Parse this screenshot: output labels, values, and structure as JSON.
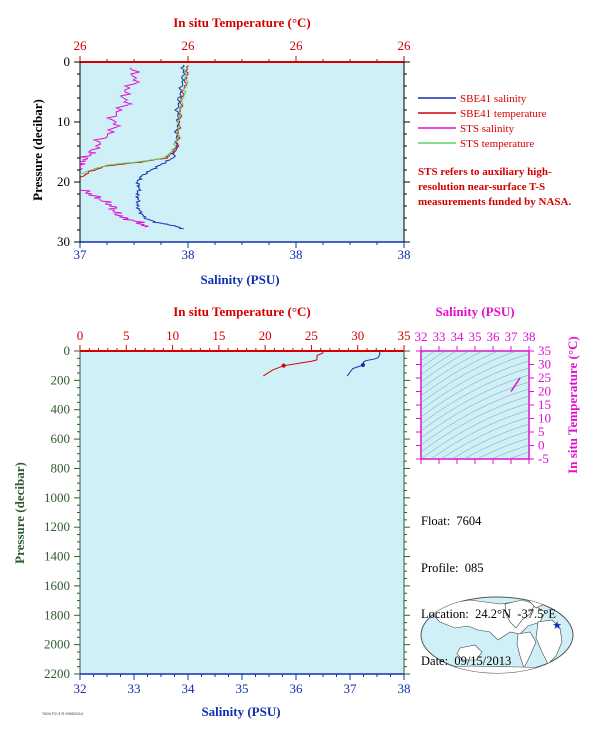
{
  "chart_data": [
    {
      "type": "line",
      "top_xlabel": "In situ Temperature (°C)",
      "top_ticks": [
        "26",
        "26",
        "26",
        "26"
      ],
      "bottom_xlabel": "Salinity (PSU)",
      "bottom_ticks": [
        "37",
        "38",
        "38",
        "38"
      ],
      "ylabel": "Pressure (decibar)",
      "ylim": [
        30,
        0
      ],
      "y_ticks": [
        "0",
        "10",
        "20",
        "30"
      ],
      "series": [
        {
          "name": "SBE41 salinity",
          "color": "#1030b0",
          "points": [
            [
              37.95,
              0.5
            ],
            [
              37.96,
              2
            ],
            [
              37.94,
              4
            ],
            [
              37.92,
              6
            ],
            [
              37.9,
              8
            ],
            [
              37.91,
              10
            ],
            [
              37.89,
              12
            ],
            [
              37.9,
              14
            ],
            [
              37.86,
              16
            ],
            [
              37.76,
              17
            ],
            [
              37.66,
              18
            ],
            [
              37.57,
              19
            ],
            [
              37.53,
              20
            ],
            [
              37.55,
              21
            ],
            [
              37.53,
              22
            ],
            [
              37.54,
              23
            ],
            [
              37.53,
              24
            ],
            [
              37.56,
              25
            ],
            [
              37.6,
              26
            ],
            [
              37.7,
              26.7
            ],
            [
              37.85,
              27.2
            ],
            [
              37.96,
              27.8
            ]
          ]
        },
        {
          "name": "SBE41 temperature",
          "color": "#d40000",
          "points": [
            [
              37.99,
              0.6
            ],
            [
              37.99,
              2
            ],
            [
              37.97,
              4
            ],
            [
              37.94,
              6
            ],
            [
              37.93,
              8
            ],
            [
              37.92,
              10
            ],
            [
              37.91,
              12
            ],
            [
              37.9,
              14
            ],
            [
              37.86,
              15
            ],
            [
              37.8,
              16
            ],
            [
              37.55,
              16.7
            ],
            [
              37.25,
              17.3
            ],
            [
              37.1,
              18.2
            ],
            [
              37.0,
              19.3
            ],
            [
              36.9,
              20.2
            ],
            [
              36.84,
              21.5
            ],
            [
              36.79,
              23.5
            ],
            [
              36.75,
              25.5
            ],
            [
              36.69,
              27.3
            ],
            [
              36.68,
              28
            ]
          ]
        },
        {
          "name": "STS salinity",
          "color": "#e010d0",
          "points": [
            [
              37.48,
              1
            ],
            [
              37.52,
              3
            ],
            [
              37.41,
              5
            ],
            [
              37.43,
              7
            ],
            [
              37.3,
              9
            ],
            [
              37.33,
              11
            ],
            [
              37.19,
              13
            ],
            [
              37.12,
              15
            ],
            [
              37.05,
              16
            ],
            [
              37.0,
              17
            ],
            [
              36.98,
              18
            ],
            [
              36.9,
              19
            ],
            [
              36.85,
              20
            ],
            [
              36.98,
              21
            ],
            [
              37.1,
              22
            ],
            [
              37.2,
              23
            ],
            [
              37.3,
              24
            ],
            [
              37.32,
              25
            ],
            [
              37.4,
              26
            ],
            [
              37.55,
              26.7
            ],
            [
              37.6,
              27.5
            ]
          ]
        },
        {
          "name": "STS temperature",
          "color": "#60d060",
          "points": [
            [
              37.96,
              1
            ],
            [
              37.99,
              3
            ],
            [
              37.97,
              5
            ],
            [
              37.94,
              7
            ],
            [
              37.92,
              9
            ],
            [
              37.91,
              11
            ],
            [
              37.9,
              13
            ],
            [
              37.85,
              15
            ],
            [
              37.78,
              16
            ],
            [
              37.6,
              16.5
            ],
            [
              37.25,
              17.2
            ],
            [
              37.05,
              18.3
            ],
            [
              36.95,
              19.3
            ],
            [
              36.88,
              20.2
            ],
            [
              36.83,
              21.5
            ],
            [
              36.8,
              23
            ],
            [
              36.77,
              25
            ],
            [
              36.73,
              26.5
            ],
            [
              36.67,
              28
            ],
            [
              36.66,
              28.5
            ]
          ]
        }
      ],
      "note": "STS refers to auxiliary high-resolution near-surface T-S measurements funded by NASA."
    },
    {
      "type": "line",
      "top_xlabel": "In situ Temperature (°C)",
      "top_ticks": [
        "0",
        "5",
        "10",
        "15",
        "20",
        "25",
        "30",
        "35"
      ],
      "bottom_xlabel": "Salinity (PSU)",
      "bottom_ticks": [
        "32",
        "33",
        "34",
        "35",
        "36",
        "37",
        "38"
      ],
      "ylabel": "Pressure (decibar)",
      "ylim": [
        2200,
        0
      ],
      "y_ticks": [
        "0",
        "200",
        "400",
        "600",
        "800",
        "1000",
        "1200",
        "1400",
        "1600",
        "1800",
        "2000",
        "2200"
      ],
      "series": [
        {
          "name": "temperature",
          "color": "#d40000",
          "points": [
            [
              26.3,
              2
            ],
            [
              26.2,
              15
            ],
            [
              25.6,
              30
            ],
            [
              25.6,
              60
            ],
            [
              25.0,
              70
            ],
            [
              23.5,
              85
            ],
            [
              22.0,
              100
            ],
            [
              20.8,
              130
            ],
            [
              19.8,
              170
            ]
          ]
        },
        {
          "name": "salinity",
          "color": "#1030b0",
          "points": [
            [
              37.55,
              2
            ],
            [
              37.55,
              25
            ],
            [
              37.52,
              45
            ],
            [
              37.45,
              55
            ],
            [
              37.3,
              65
            ],
            [
              37.25,
              75
            ],
            [
              37.24,
              95
            ],
            [
              37.05,
              120
            ],
            [
              36.95,
              170
            ]
          ]
        }
      ]
    },
    {
      "type": "line",
      "top_xlabel": "Salinity (PSU)",
      "top_ticks": [
        "32",
        "33",
        "34",
        "35",
        "36",
        "37",
        "38"
      ],
      "right_ylabel": "In situ Temperature (°C)",
      "right_ticks": [
        "-5",
        "0",
        "5",
        "10",
        "15",
        "20",
        "25",
        "30",
        "35"
      ],
      "series": [
        {
          "name": "T-S",
          "color": "#e010d0",
          "points": [
            [
              37.0,
              20
            ],
            [
              37.2,
              22
            ],
            [
              37.4,
              24
            ],
            [
              37.5,
              25
            ]
          ]
        }
      ]
    }
  ],
  "float_info": {
    "float": "Float:  7604",
    "profile": "Profile:  085",
    "location": "Location:  24.2°N  -37.5°E",
    "date": "Date:  09/15/2013"
  },
  "credit": "7604 P2.3 R 09052014",
  "colors": {
    "panel_bg": "#d0f0f8",
    "temp": "#d40000",
    "sal": "#1030b0",
    "pres": "#2f5d2f",
    "ts": "#e010d0"
  }
}
